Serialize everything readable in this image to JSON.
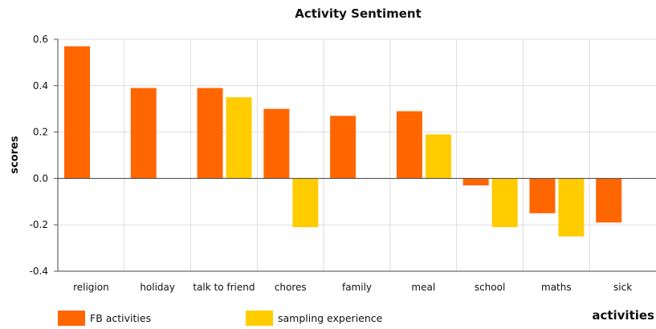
{
  "chart_data": {
    "type": "bar",
    "title": "Activity Sentiment",
    "xlabel": "activities",
    "ylabel": "scores",
    "ylim": [
      -0.4,
      0.6
    ],
    "yticks": [
      "0.6",
      "0.4",
      "0.2",
      "0.0",
      "-0.2",
      "-0.4"
    ],
    "grid": true,
    "legend_position": "bottom-left",
    "categories": [
      "religion",
      "holiday",
      "talk to friend",
      "chores",
      "family",
      "meal",
      "school",
      "maths",
      "sick"
    ],
    "series": [
      {
        "name": "FB activities",
        "color": "#ff6600",
        "values": [
          0.57,
          0.39,
          0.39,
          0.3,
          0.27,
          0.29,
          -0.03,
          -0.15,
          -0.19
        ]
      },
      {
        "name": "sampling experience",
        "color": "#ffcc00",
        "values": [
          null,
          null,
          0.35,
          -0.21,
          null,
          0.19,
          -0.21,
          -0.25,
          null
        ]
      }
    ]
  }
}
